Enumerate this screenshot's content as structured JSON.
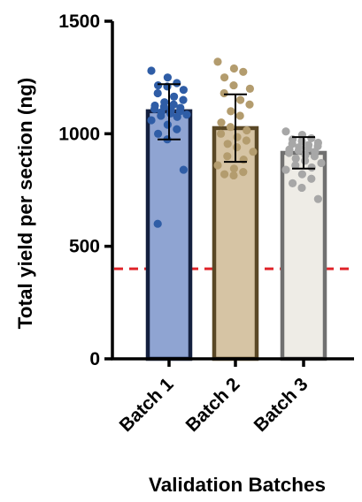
{
  "chart_data": {
    "type": "bar",
    "title": "",
    "xlabel": "Validation Batches",
    "ylabel": "Total yield per section (ng)",
    "ylim": [
      0,
      1500
    ],
    "yticks": [
      0,
      500,
      1000,
      1500
    ],
    "categories": [
      "Batch 1",
      "Batch 2",
      "Batch 3"
    ],
    "values": [
      1100,
      1025,
      915
    ],
    "error": [
      {
        "low": 975,
        "high": 1220
      },
      {
        "low": 875,
        "high": 1175
      },
      {
        "low": 845,
        "high": 985
      }
    ],
    "colors": {
      "fill": [
        "#8fa4d2",
        "#d6c4a4",
        "#eeece6"
      ],
      "stroke": [
        "#14203f",
        "#5a4826",
        "#707070"
      ],
      "points": [
        "#2f5da6",
        "#b39c6e",
        "#a7a7a7"
      ]
    },
    "threshold": {
      "value": 400,
      "color": "#e0242a"
    },
    "points": [
      [
        1280,
        1250,
        1225,
        1215,
        1210,
        1195,
        1180,
        1165,
        1150,
        1140,
        1130,
        1125,
        1120,
        1115,
        1110,
        1105,
        1100,
        1095,
        1090,
        1085,
        1080,
        1075,
        1060,
        1040,
        1020,
        1000,
        975,
        840,
        600
      ],
      [
        1320,
        1290,
        1275,
        1250,
        1215,
        1200,
        1180,
        1150,
        1130,
        1100,
        1080,
        1050,
        1030,
        1015,
        1000,
        985,
        970,
        955,
        940,
        920,
        900,
        885,
        860,
        845,
        830,
        820,
        815
      ],
      [
        1010,
        995,
        980,
        975,
        968,
        960,
        955,
        950,
        945,
        940,
        935,
        930,
        925,
        920,
        915,
        905,
        900,
        890,
        880,
        870,
        860,
        850,
        840,
        820,
        800,
        780,
        760,
        710
      ]
    ]
  }
}
